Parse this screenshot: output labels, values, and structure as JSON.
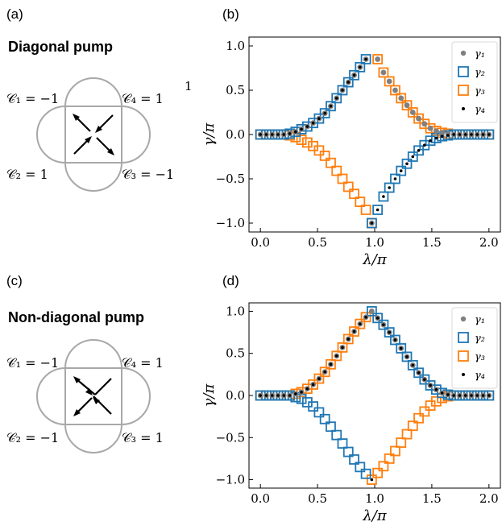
{
  "panels": {
    "a": {
      "letter": "(a)",
      "title": "Diagonal pump",
      "chern": [
        "𝒞₁ = −1",
        "𝒞₂ = 1",
        "𝒞₃ = −1",
        "𝒞₄ = 1"
      ]
    },
    "b": {
      "letter": "(b)"
    },
    "c": {
      "letter": "(c)",
      "title": "Non-diagonal pump",
      "chern": [
        "𝒞₁ = −1",
        "𝒞₂ = −1",
        "𝒞₃ = 1",
        "𝒞₄ = 1"
      ]
    },
    "d": {
      "letter": "(d)"
    },
    "stray_label": "1"
  },
  "colors": {
    "gamma1": "#808080",
    "gamma2": "#1f77b4",
    "gamma3": "#ff7f0e",
    "gamma4": "#000000",
    "frame": "#a0a0a0"
  },
  "chart_data": [
    {
      "type": "scatter",
      "panel": "b",
      "xlabel": "λ/π",
      "ylabel": "γ/π",
      "xlim": [
        -0.1,
        2.1
      ],
      "ylim": [
        -1.1,
        1.1
      ],
      "xticks": [
        "0.0",
        "0.5",
        "1.0",
        "1.5",
        "2.0"
      ],
      "yticks": [
        "1.0",
        "0.5",
        "0.0",
        "−0.5",
        "−1.0"
      ],
      "legend": [
        "γ₁",
        "γ₂",
        "γ₃",
        "γ₄"
      ],
      "legend_position": "top-right",
      "x": [
        0,
        0.0513,
        0.1026,
        0.1538,
        0.2051,
        0.2564,
        0.3077,
        0.359,
        0.4103,
        0.4615,
        0.5128,
        0.5641,
        0.6154,
        0.6667,
        0.7179,
        0.7692,
        0.8205,
        0.8718,
        0.9231,
        0.9744,
        1.0256,
        1.0769,
        1.1282,
        1.1795,
        1.2308,
        1.2821,
        1.3333,
        1.3846,
        1.4359,
        1.4872,
        1.5385,
        1.5897,
        1.641,
        1.6923,
        1.7436,
        1.7949,
        1.8462,
        1.8974,
        1.9487,
        2.0
      ],
      "series": [
        {
          "name": "γ₁",
          "values": [
            0,
            0,
            0,
            0,
            0,
            0.01,
            0.03,
            0.06,
            0.09,
            0.13,
            0.18,
            0.24,
            0.32,
            0.41,
            0.5,
            0.59,
            0.67,
            0.76,
            0.85,
            -1.0,
            0.85,
            0.7,
            0.6,
            0.5,
            0.41,
            0.33,
            0.25,
            0.18,
            0.12,
            0.07,
            0.04,
            0.02,
            0.01,
            0,
            0,
            0,
            0,
            0,
            0,
            0
          ]
        },
        {
          "name": "γ₂",
          "values": [
            0,
            0,
            0,
            0,
            0,
            0.01,
            0.03,
            0.06,
            0.09,
            0.13,
            0.18,
            0.24,
            0.32,
            0.41,
            0.5,
            0.59,
            0.67,
            0.76,
            0.85,
            -1.0,
            -0.85,
            -0.7,
            -0.6,
            -0.5,
            -0.41,
            -0.33,
            -0.25,
            -0.18,
            -0.12,
            -0.07,
            -0.04,
            -0.02,
            -0.01,
            0,
            0,
            0,
            0,
            0,
            0,
            0
          ]
        },
        {
          "name": "γ₃",
          "values": [
            0,
            0,
            0,
            0,
            0,
            -0.01,
            -0.03,
            -0.06,
            -0.09,
            -0.13,
            -0.18,
            -0.24,
            -0.32,
            -0.41,
            -0.5,
            -0.59,
            -0.67,
            -0.76,
            -0.85,
            -1.0,
            0.85,
            0.7,
            0.6,
            0.5,
            0.41,
            0.33,
            0.25,
            0.18,
            0.12,
            0.07,
            0.04,
            0.02,
            0.01,
            0,
            0,
            0,
            0,
            0,
            0,
            0
          ]
        },
        {
          "name": "γ₄",
          "values": [
            0,
            0,
            0,
            0,
            0,
            0.01,
            0.03,
            0.06,
            0.09,
            0.13,
            0.18,
            0.24,
            0.32,
            0.41,
            0.5,
            0.59,
            0.67,
            0.76,
            0.85,
            -1.0,
            -0.85,
            -0.7,
            -0.6,
            -0.5,
            -0.41,
            -0.33,
            -0.25,
            -0.18,
            -0.12,
            -0.07,
            -0.04,
            -0.02,
            -0.01,
            0,
            0,
            0,
            0,
            0,
            0,
            0
          ]
        }
      ]
    },
    {
      "type": "scatter",
      "panel": "d",
      "xlabel": "λ/π",
      "ylabel": "γ/π",
      "xlim": [
        -0.1,
        2.1
      ],
      "ylim": [
        -1.1,
        1.1
      ],
      "xticks": [
        "0.0",
        "0.5",
        "1.0",
        "1.5",
        "2.0"
      ],
      "yticks": [
        "1.0",
        "0.5",
        "0.0",
        "−0.5",
        "−1.0"
      ],
      "legend": [
        "γ₁",
        "γ₂",
        "γ₃",
        "γ₄"
      ],
      "legend_position": "top-right",
      "x": [
        0,
        0.0513,
        0.1026,
        0.1538,
        0.2051,
        0.2564,
        0.3077,
        0.359,
        0.4103,
        0.4615,
        0.5128,
        0.5641,
        0.6154,
        0.6667,
        0.7179,
        0.7692,
        0.8205,
        0.8718,
        0.9231,
        0.9744,
        1.0256,
        1.0769,
        1.1282,
        1.1795,
        1.2308,
        1.2821,
        1.3333,
        1.3846,
        1.4359,
        1.4872,
        1.5385,
        1.5897,
        1.641,
        1.6923,
        1.7436,
        1.7949,
        1.8462,
        1.8974,
        1.9487,
        2.0
      ],
      "series": [
        {
          "name": "γ₁",
          "values": [
            0,
            0,
            0,
            0,
            0,
            0,
            0.02,
            0.04,
            0.08,
            0.13,
            0.2,
            0.28,
            0.37,
            0.47,
            0.57,
            0.67,
            0.76,
            0.85,
            0.93,
            1.0,
            0.92,
            0.84,
            0.75,
            0.66,
            0.56,
            0.46,
            0.36,
            0.27,
            0.19,
            0.12,
            0.07,
            0.03,
            0.01,
            0,
            0,
            0,
            0,
            0,
            0,
            0
          ]
        },
        {
          "name": "γ₂",
          "values": [
            0,
            0,
            0,
            0,
            0,
            0,
            -0.02,
            -0.04,
            -0.08,
            -0.13,
            -0.2,
            -0.28,
            -0.37,
            -0.47,
            -0.57,
            -0.67,
            -0.76,
            -0.85,
            -0.93,
            1.0,
            0.92,
            0.84,
            0.75,
            0.66,
            0.56,
            0.46,
            0.36,
            0.27,
            0.19,
            0.12,
            0.07,
            0.03,
            0.01,
            0,
            0,
            0,
            0,
            0,
            0,
            0
          ]
        },
        {
          "name": "γ₃",
          "values": [
            0,
            0,
            0,
            0,
            0,
            0,
            0.02,
            0.04,
            0.08,
            0.13,
            0.2,
            0.28,
            0.37,
            0.47,
            0.57,
            0.67,
            0.76,
            0.85,
            0.93,
            -1.0,
            -0.92,
            -0.84,
            -0.75,
            -0.66,
            -0.56,
            -0.46,
            -0.36,
            -0.27,
            -0.19,
            -0.12,
            -0.07,
            -0.03,
            -0.01,
            0,
            0,
            0,
            0,
            0,
            0,
            0
          ]
        },
        {
          "name": "γ₄",
          "values": [
            0,
            0,
            0,
            0,
            0,
            0,
            0.02,
            0.04,
            0.08,
            0.13,
            0.2,
            0.28,
            0.37,
            0.47,
            0.57,
            0.67,
            0.76,
            0.85,
            0.93,
            -1.0,
            0.92,
            0.84,
            0.75,
            0.66,
            0.56,
            0.46,
            0.36,
            0.27,
            0.19,
            0.12,
            0.07,
            0.03,
            0.01,
            0,
            0,
            0,
            0,
            0,
            0,
            0
          ]
        }
      ]
    }
  ]
}
